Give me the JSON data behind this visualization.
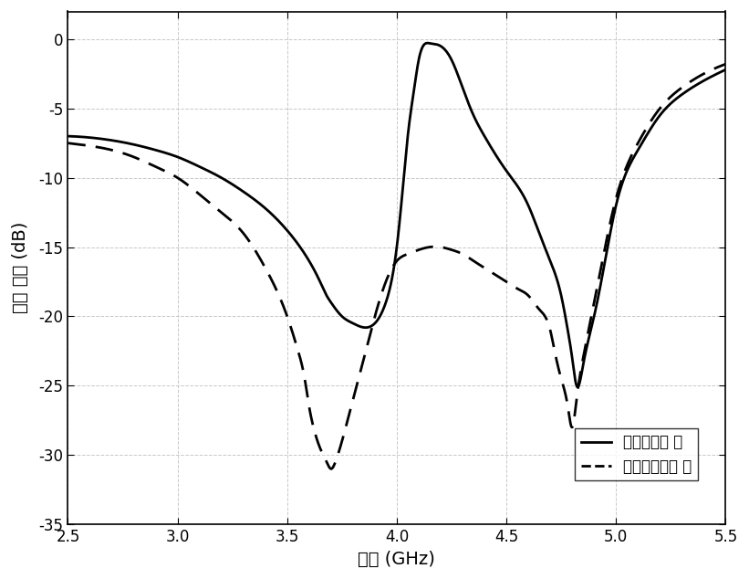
{
  "title": "",
  "xlabel": "频率 (GHz)",
  "ylabel": "回波 损耗 (dB)",
  "xlim": [
    2.5,
    5.5
  ],
  "ylim": [
    -35,
    2
  ],
  "xticks": [
    2.5,
    3.0,
    3.5,
    4.0,
    4.5,
    5.0,
    5.5
  ],
  "yticks": [
    0,
    -5,
    -10,
    -15,
    -20,
    -25,
    -30,
    -35
  ],
  "line1_label": "加入扰动支 节",
  "line2_label": "未加入扰动支 节",
  "background_color": "#ffffff",
  "grid_color": "#c8c8c8",
  "line_color": "#000000",
  "solid_x": [
    2.5,
    2.6,
    2.7,
    2.8,
    2.9,
    3.0,
    3.1,
    3.2,
    3.3,
    3.4,
    3.5,
    3.55,
    3.6,
    3.65,
    3.68,
    3.7,
    3.75,
    3.8,
    3.85,
    3.9,
    3.95,
    4.0,
    4.02,
    4.05,
    4.08,
    4.1,
    4.15,
    4.2,
    4.25,
    4.3,
    4.35,
    4.4,
    4.5,
    4.6,
    4.65,
    4.7,
    4.75,
    4.78,
    4.8,
    4.82,
    4.85,
    4.9,
    4.95,
    5.0,
    5.1,
    5.2,
    5.3,
    5.4,
    5.5
  ],
  "solid_y": [
    -7.0,
    -7.1,
    -7.3,
    -7.6,
    -8.0,
    -8.5,
    -9.2,
    -10.0,
    -11.0,
    -12.2,
    -13.8,
    -14.8,
    -16.0,
    -17.5,
    -18.5,
    -19.0,
    -20.0,
    -20.5,
    -20.8,
    -20.5,
    -19.0,
    -15.0,
    -12.0,
    -7.0,
    -3.5,
    -1.5,
    -0.3,
    -0.5,
    -1.5,
    -3.5,
    -5.5,
    -7.0,
    -9.5,
    -12.0,
    -14.0,
    -16.0,
    -18.5,
    -21.0,
    -23.0,
    -25.0,
    -23.5,
    -20.0,
    -16.0,
    -12.0,
    -8.0,
    -5.5,
    -4.0,
    -3.0,
    -2.2
  ],
  "dashed_x": [
    2.5,
    2.6,
    2.7,
    2.8,
    2.9,
    3.0,
    3.1,
    3.2,
    3.3,
    3.4,
    3.5,
    3.55,
    3.58,
    3.6,
    3.62,
    3.65,
    3.68,
    3.7,
    3.72,
    3.75,
    3.8,
    3.85,
    3.9,
    3.95,
    4.0,
    4.05,
    4.1,
    4.15,
    4.2,
    4.25,
    4.3,
    4.35,
    4.4,
    4.45,
    4.5,
    4.55,
    4.6,
    4.65,
    4.7,
    4.72,
    4.75,
    4.78,
    4.8,
    4.82,
    4.85,
    4.9,
    4.95,
    5.0,
    5.1,
    5.2,
    5.3,
    5.4,
    5.5
  ],
  "dashed_y": [
    -7.5,
    -7.7,
    -8.0,
    -8.5,
    -9.2,
    -10.0,
    -11.2,
    -12.5,
    -14.0,
    -16.5,
    -20.0,
    -22.5,
    -24.5,
    -26.5,
    -28.0,
    -29.5,
    -30.5,
    -31.0,
    -30.5,
    -29.0,
    -26.0,
    -23.0,
    -20.0,
    -17.5,
    -16.0,
    -15.5,
    -15.2,
    -15.0,
    -15.0,
    -15.2,
    -15.5,
    -16.0,
    -16.5,
    -17.0,
    -17.5,
    -18.0,
    -18.5,
    -19.5,
    -21.0,
    -22.5,
    -24.5,
    -26.5,
    -28.0,
    -26.0,
    -23.0,
    -19.0,
    -15.0,
    -11.5,
    -7.5,
    -5.0,
    -3.5,
    -2.5,
    -1.8
  ]
}
